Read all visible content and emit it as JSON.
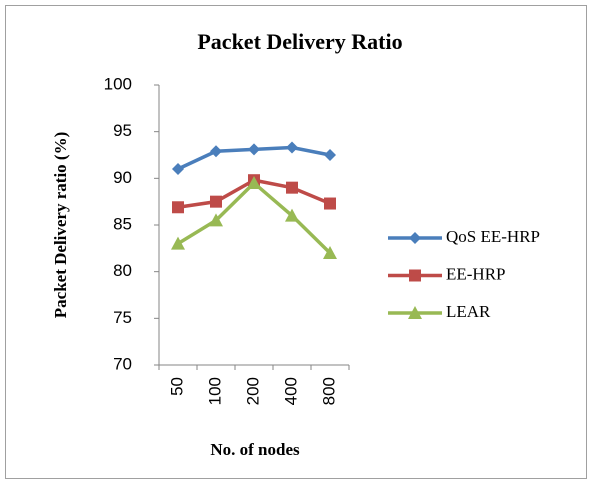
{
  "chart_data": {
    "type": "line",
    "title": "Packet Delivery Ratio",
    "x_label": "No. of nodes",
    "y_label": "Packet Delivery ratio (%)",
    "categories": [
      "50",
      "100",
      "200",
      "400",
      "800"
    ],
    "series": [
      {
        "name": "QoS EE-HRP",
        "color": "#4a7ebb",
        "marker": "diamond",
        "values": [
          91,
          92.9,
          93.1,
          93.3,
          92.5
        ]
      },
      {
        "name": "EE-HRP",
        "color": "#be4b48",
        "marker": "square",
        "values": [
          86.9,
          87.5,
          89.8,
          89,
          87.3
        ]
      },
      {
        "name": "LEAR",
        "color": "#98b954",
        "marker": "triangle",
        "values": [
          83,
          85.5,
          89.5,
          86,
          82
        ]
      }
    ],
    "ylim": [
      70,
      100
    ],
    "yticks": [
      70,
      75,
      80,
      85,
      90,
      95,
      100
    ],
    "grid": false,
    "legend": "right"
  }
}
